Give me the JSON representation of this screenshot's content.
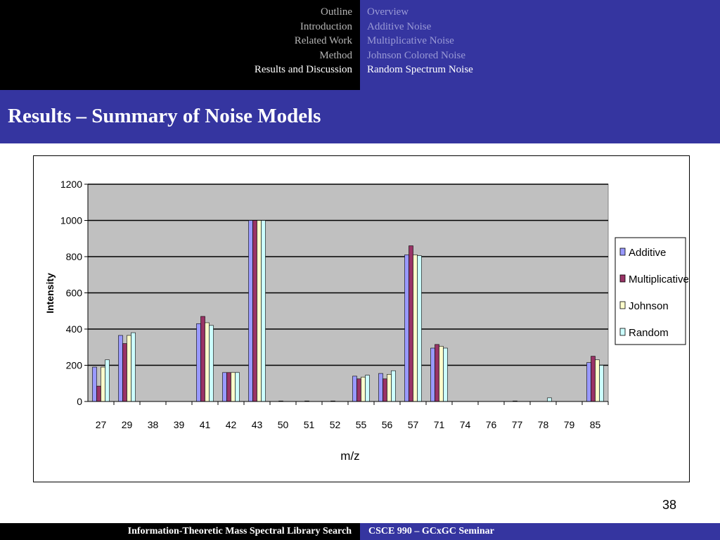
{
  "nav": {
    "sections": [
      {
        "label": "Outline",
        "active": false
      },
      {
        "label": "Introduction",
        "active": false
      },
      {
        "label": "Related Work",
        "active": false
      },
      {
        "label": "Method",
        "active": false
      },
      {
        "label": "Results and Discussion",
        "active": true
      }
    ],
    "subsections": [
      {
        "label": "Overview",
        "active": false
      },
      {
        "label": "Additive Noise",
        "active": false
      },
      {
        "label": "Multiplicative Noise",
        "active": false
      },
      {
        "label": "Johnson Colored Noise",
        "active": false
      },
      {
        "label": "Random Spectrum Noise",
        "active": true
      }
    ]
  },
  "slide": {
    "title": "Results – Summary of  Noise Models",
    "page_number": "38"
  },
  "footer": {
    "left": "Information-Theoretic Mass Spectral Library Search",
    "right": "CSCE 990 – GCxGC Seminar"
  },
  "colors": {
    "nav_bg": "#000000",
    "accent": "#3535a0",
    "plot_bg": "#c0c0c0"
  },
  "chart_data": {
    "type": "bar",
    "xlabel": "m/z",
    "ylabel": "Intensity",
    "ylim": [
      0,
      1200
    ],
    "yticks": [
      0,
      200,
      400,
      600,
      800,
      1000,
      1200
    ],
    "grid": true,
    "legend_position": "right",
    "categories": [
      "27",
      "29",
      "38",
      "39",
      "41",
      "42",
      "43",
      "50",
      "51",
      "52",
      "55",
      "56",
      "57",
      "71",
      "74",
      "76",
      "77",
      "78",
      "79",
      "85"
    ],
    "series": [
      {
        "name": "Additive",
        "color": "#9999ff",
        "values": [
          190,
          365,
          0,
          0,
          430,
          160,
          1000,
          0,
          0,
          0,
          140,
          155,
          810,
          295,
          0,
          0,
          0,
          0,
          0,
          215
        ]
      },
      {
        "name": "Multiplicative",
        "color": "#993366",
        "values": [
          85,
          320,
          0,
          0,
          470,
          160,
          1000,
          3,
          3,
          3,
          125,
          125,
          860,
          315,
          0,
          0,
          3,
          0,
          0,
          250
        ]
      },
      {
        "name": "Johnson",
        "color": "#ffffcc",
        "values": [
          190,
          365,
          0,
          0,
          435,
          160,
          1000,
          0,
          0,
          0,
          135,
          150,
          810,
          305,
          0,
          0,
          0,
          0,
          0,
          230
        ]
      },
      {
        "name": "Random",
        "color": "#ccffff",
        "values": [
          230,
          380,
          0,
          0,
          420,
          160,
          1000,
          0,
          0,
          0,
          145,
          170,
          805,
          295,
          0,
          0,
          0,
          20,
          0,
          200
        ]
      }
    ]
  }
}
